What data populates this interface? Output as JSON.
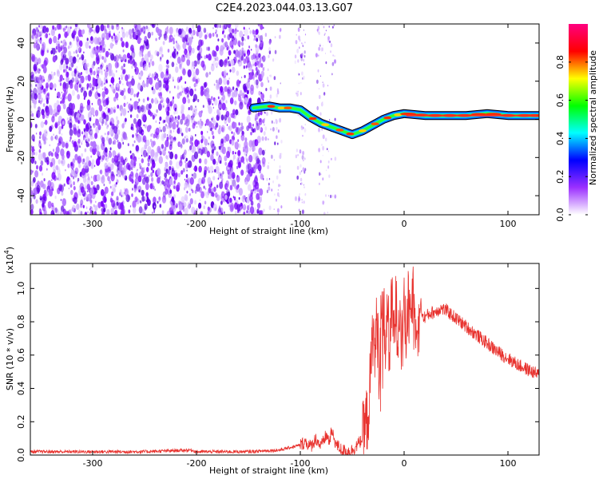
{
  "figure": {
    "title": "C2E4.2023.044.03.13.G07"
  },
  "chart_data": [
    {
      "type": "heatmap",
      "title": "C2E4.2023.044.03.13.G07",
      "xlabel": "Height of straight line (km)",
      "ylabel": "Frequency (Hz)",
      "xlim": [
        -360,
        130
      ],
      "ylim": [
        -50,
        50
      ],
      "x_ticks": [
        -300,
        -200,
        -100,
        0,
        100
      ],
      "y_ticks": [
        -40,
        -20,
        0,
        20,
        40
      ],
      "colorbar": {
        "label": "Normalized spectral amplitude",
        "range": [
          0.0,
          1.0
        ],
        "ticks": [
          0.0,
          0.2,
          0.4,
          0.6,
          0.8
        ],
        "colors": [
          "#ffffff",
          "#9b30ff",
          "#0000ff",
          "#00ffff",
          "#00ff00",
          "#ffff00",
          "#ff0000",
          "#ff0080"
        ]
      },
      "noise_region_x": [
        -360,
        -135
      ],
      "ridge": {
        "x": [
          -145,
          -130,
          -120,
          -110,
          -100,
          -90,
          -80,
          -70,
          -60,
          -50,
          -40,
          -30,
          -20,
          -10,
          0,
          20,
          40,
          60,
          80,
          100,
          130
        ],
        "y": [
          6,
          7,
          6,
          6,
          5,
          1,
          -2,
          -4,
          -6,
          -8,
          -6,
          -3,
          0,
          2,
          3,
          2,
          2,
          2,
          3,
          2,
          2
        ]
      }
    },
    {
      "type": "line",
      "xlabel": "Height of straight line (km)",
      "ylabel": "SNR (10 * v/v)",
      "y_multiplier": "(x10",
      "y_multiplier_exp": "4",
      "y_multiplier_close": ")",
      "xlim": [
        -360,
        130
      ],
      "ylim": [
        0,
        1.15
      ],
      "x_ticks": [
        -300,
        -200,
        -100,
        0,
        100
      ],
      "y_ticks": [
        0.0,
        0.2,
        0.4,
        0.6,
        0.8,
        1.0
      ],
      "series": [
        {
          "color": "#e8332f",
          "x": [
            -360,
            -300,
            -250,
            -205,
            -200,
            -150,
            -120,
            -100,
            -95,
            -90,
            -85,
            -80,
            -75,
            -72,
            -70,
            -65,
            -60,
            -55,
            -50,
            -45,
            -40,
            -36,
            -34,
            -32,
            -30,
            -28,
            -26,
            -24,
            -22,
            -20,
            -18,
            -16,
            -14,
            -12,
            -10,
            -8,
            -6,
            -4,
            -2,
            0,
            2,
            4,
            6,
            8,
            10,
            12,
            14,
            16,
            18,
            20,
            25,
            30,
            35,
            40,
            50,
            60,
            70,
            80,
            90,
            100,
            110,
            120,
            130
          ],
          "y": [
            0.02,
            0.02,
            0.02,
            0.03,
            0.02,
            0.02,
            0.03,
            0.06,
            0.08,
            0.05,
            0.1,
            0.05,
            0.12,
            0.08,
            0.14,
            0.06,
            0.03,
            0.02,
            0.03,
            0.06,
            0.1,
            0.2,
            0.3,
            0.5,
            0.75,
            0.6,
            0.82,
            0.5,
            0.85,
            0.9,
            0.65,
            0.88,
            0.62,
            0.92,
            0.7,
            0.9,
            0.75,
            0.95,
            0.68,
            0.85,
            0.72,
            0.9,
            0.75,
            1.0,
            0.8,
            0.88,
            0.78,
            0.92,
            0.82,
            0.83,
            0.85,
            0.86,
            0.88,
            0.87,
            0.82,
            0.77,
            0.72,
            0.67,
            0.62,
            0.58,
            0.54,
            0.51,
            0.48
          ]
        }
      ]
    }
  ]
}
